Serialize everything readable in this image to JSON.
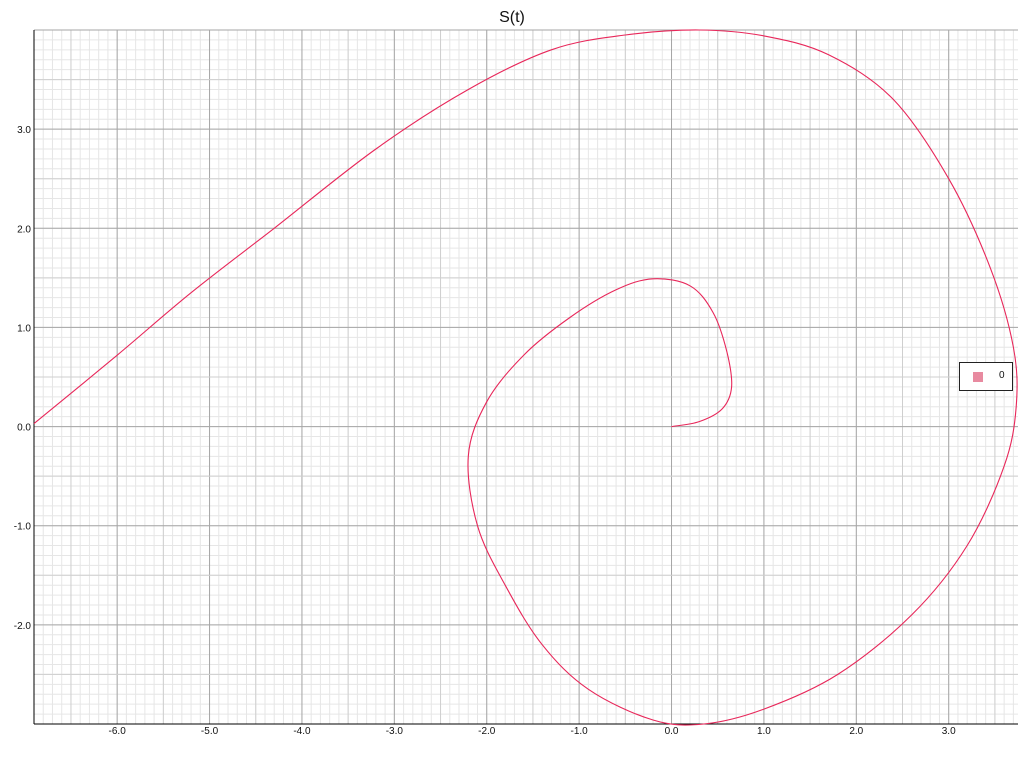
{
  "chart_data": {
    "type": "line",
    "title": "S(t)",
    "xlabel": "",
    "ylabel": "",
    "xlim": [
      -6.9,
      3.75
    ],
    "ylim": [
      -3.0,
      4.0
    ],
    "x_ticks": [
      "-6.0",
      "-5.0",
      "-4.0",
      "-3.0",
      "-2.0",
      "-1.0",
      "0.0",
      "1.0",
      "2.0",
      "3.0"
    ],
    "y_ticks": [
      "-2.0",
      "-1.0",
      "0.0",
      "1.0",
      "2.0",
      "3.0"
    ],
    "grid": true,
    "legend_position": "right",
    "series": [
      {
        "name": "0",
        "color": "#e8275a",
        "legend_color": "#e88aa0",
        "points": [
          [
            0.0,
            0.0
          ],
          [
            0.3,
            0.05
          ],
          [
            0.55,
            0.18
          ],
          [
            0.65,
            0.4
          ],
          [
            0.6,
            0.75
          ],
          [
            0.45,
            1.15
          ],
          [
            0.2,
            1.42
          ],
          [
            -0.2,
            1.49
          ],
          [
            -0.6,
            1.38
          ],
          [
            -1.1,
            1.1
          ],
          [
            -1.6,
            0.72
          ],
          [
            -2.0,
            0.25
          ],
          [
            -2.2,
            -0.3
          ],
          [
            -2.1,
            -1.0
          ],
          [
            -1.8,
            -1.6
          ],
          [
            -1.4,
            -2.2
          ],
          [
            -0.9,
            -2.65
          ],
          [
            -0.2,
            -2.96
          ],
          [
            0.35,
            -3.0
          ],
          [
            1.0,
            -2.85
          ],
          [
            1.8,
            -2.5
          ],
          [
            2.6,
            -1.9
          ],
          [
            3.2,
            -1.2
          ],
          [
            3.6,
            -0.4
          ],
          [
            3.73,
            0.2
          ],
          [
            3.7,
            0.8
          ],
          [
            3.45,
            1.6
          ],
          [
            3.0,
            2.5
          ],
          [
            2.4,
            3.3
          ],
          [
            1.7,
            3.75
          ],
          [
            1.0,
            3.94
          ],
          [
            0.3,
            4.0
          ],
          [
            -0.5,
            3.95
          ],
          [
            -1.3,
            3.8
          ],
          [
            -2.2,
            3.4
          ],
          [
            -3.2,
            2.8
          ],
          [
            -4.3,
            2.0
          ],
          [
            -5.2,
            1.35
          ],
          [
            -6.0,
            0.72
          ],
          [
            -6.9,
            0.03
          ]
        ]
      }
    ]
  }
}
